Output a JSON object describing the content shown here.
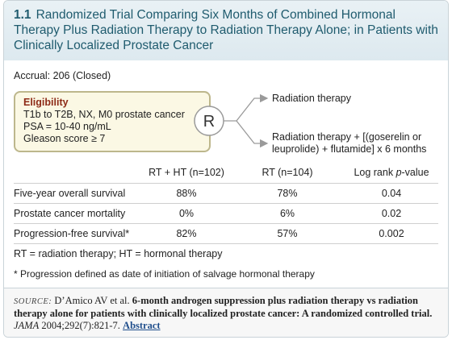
{
  "header": {
    "number": "1.1",
    "title": "Randomized Trial Comparing Six Months of Combined Hormonal Therapy Plus Radiation Therapy to Radiation Therapy Alone; in Patients with Clinically Localized Prostate Cancer"
  },
  "accrual": "Accrual: 206 (Closed)",
  "eligibility": {
    "title": "Eligibility",
    "lines": [
      "T1b to T2B, NX, M0 prostate cancer",
      "PSA = 10-40 ng/mL",
      "Gleason score ≥ 7"
    ]
  },
  "randomization": "R",
  "arms": [
    "Radiation therapy",
    "Radiation therapy + [(goserelin or leuprolide) + flutamide] x 6 months"
  ],
  "table": {
    "columns": [
      "RT + HT (n=102)",
      "RT (n=104)"
    ],
    "pvalue_column": [
      "Log rank ",
      "p",
      "-value"
    ],
    "rows": [
      {
        "label": "Five-year overall survival",
        "values": [
          "88%",
          "78%",
          "0.04"
        ]
      },
      {
        "label": "Prostate cancer mortality",
        "values": [
          "0%",
          "6%",
          "0.02"
        ]
      },
      {
        "label": "Progression-free survival*",
        "values": [
          "82%",
          "57%",
          "0.002"
        ]
      }
    ]
  },
  "notes": [
    "RT = radiation therapy; HT = hormonal therapy",
    "* Progression defined as date of initiation of salvage hormonal therapy"
  ],
  "source": {
    "label": "SOURCE:",
    "authors": "D’Amico AV et al.",
    "title": "6-month androgen suppression plus radiation therapy vs radiation therapy alone for patients with clinically localized prostate cancer: A randomized controlled trial.",
    "journal": "JAMA",
    "citation": "2004;292(7):821-7.",
    "link": "Abstract"
  }
}
